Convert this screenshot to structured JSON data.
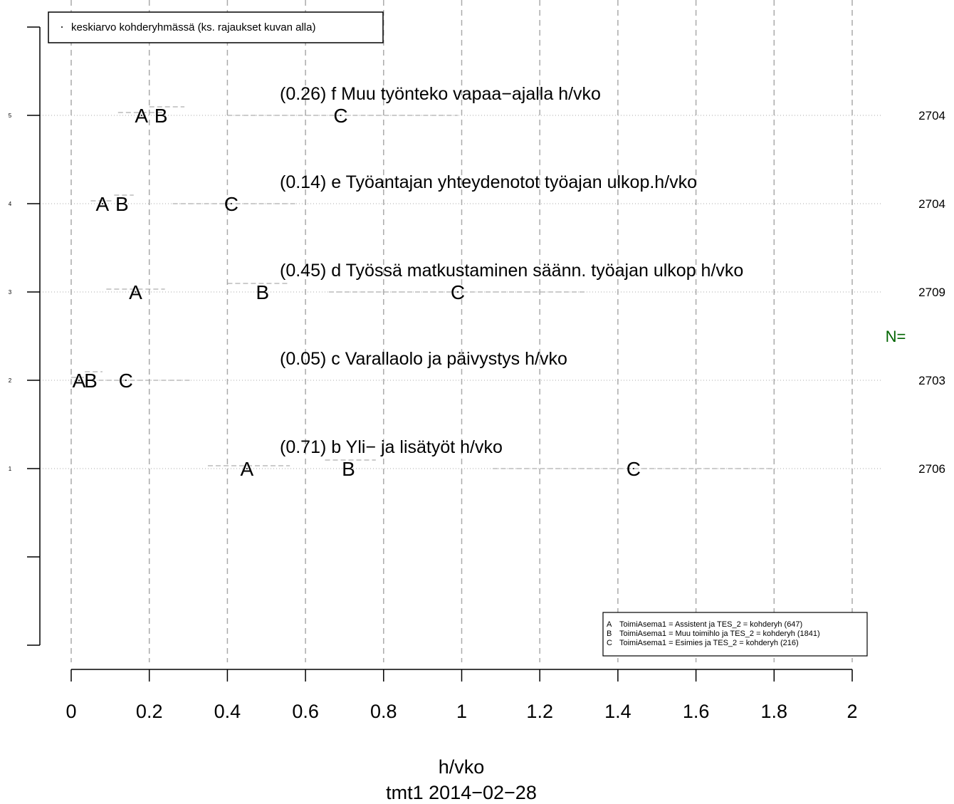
{
  "chart_data": {
    "type": "scatter",
    "xlabel": "h/vko",
    "subtitle": "tmt1 2014−02−28",
    "xlim": [
      0,
      2
    ],
    "x_ticks": [
      "0",
      "0.2",
      "0.4",
      "0.6",
      "0.8",
      "1",
      "1.2",
      "1.4",
      "1.6",
      "1.8",
      "2"
    ],
    "y_ticks": [
      "1",
      "2",
      "3",
      "4",
      "5"
    ],
    "grid": true,
    "legend_top": "keskiarvo kohderyhmässä (ks. rajaukset kuvan alla)",
    "legend_top_placement": "top-left",
    "n_label": "N=",
    "groups": [
      {
        "key": "A",
        "label": "ToimiAsema1 = Assistent ja TES_2 = kohderyh (647)"
      },
      {
        "key": "B",
        "label": "ToimiAsema1 = Muu toimihlo ja TES_2 = kohderyh (1841)"
      },
      {
        "key": "C",
        "label": "ToimiAsema1 = Esimies ja TES_2 = kohderyh (216)"
      }
    ],
    "legend_placement": "bottom-right",
    "rows": [
      {
        "y": 5,
        "title": "(0.26) f Muu työnteko vapaa−ajalla h/vko",
        "n": "2704",
        "points": [
          {
            "g": "A",
            "x": 0.18,
            "lo": 0.12,
            "hi": 0.24
          },
          {
            "g": "B",
            "x": 0.23,
            "lo": 0.2,
            "hi": 0.29
          },
          {
            "g": "C",
            "x": 0.69,
            "lo": 0.4,
            "hi": 0.99
          }
        ]
      },
      {
        "y": 4,
        "title": "(0.14) e Työantajan yhteydenotot työajan ulkop.h/vko",
        "n": "2704",
        "points": [
          {
            "g": "A",
            "x": 0.08,
            "lo": 0.05,
            "hi": 0.11
          },
          {
            "g": "B",
            "x": 0.13,
            "lo": 0.11,
            "hi": 0.16
          },
          {
            "g": "C",
            "x": 0.41,
            "lo": 0.26,
            "hi": 0.58
          }
        ]
      },
      {
        "y": 3,
        "title": "(0.45) d Työssä matkustaminen säänn. työajan ulkop h/vko",
        "n": "2709",
        "points": [
          {
            "g": "A",
            "x": 0.165,
            "lo": 0.09,
            "hi": 0.24
          },
          {
            "g": "B",
            "x": 0.49,
            "lo": 0.4,
            "hi": 0.56
          },
          {
            "g": "C",
            "x": 0.99,
            "lo": 0.66,
            "hi": 1.32
          }
        ]
      },
      {
        "y": 2,
        "title": "(0.05) c Varallaolo ja päivystys h/vko",
        "n": "2703",
        "points": [
          {
            "g": "A",
            "x": 0.02,
            "lo": 0.0,
            "hi": 0.04
          },
          {
            "g": "B",
            "x": 0.05,
            "lo": 0.035,
            "hi": 0.08
          },
          {
            "g": "C",
            "x": 0.14,
            "lo": 0.07,
            "hi": 0.31
          }
        ]
      },
      {
        "y": 1,
        "title": "(0.71) b Yli− ja lisätyöt h/vko",
        "n": "2706",
        "points": [
          {
            "g": "A",
            "x": 0.45,
            "lo": 0.35,
            "hi": 0.56
          },
          {
            "g": "B",
            "x": 0.71,
            "lo": 0.65,
            "hi": 0.78
          },
          {
            "g": "C",
            "x": 1.44,
            "lo": 1.08,
            "hi": 1.8
          }
        ]
      }
    ]
  },
  "colors": {
    "ink": "#000000",
    "grid": "#aaaaaa",
    "ci": "#999999",
    "n_label": "#006400"
  }
}
